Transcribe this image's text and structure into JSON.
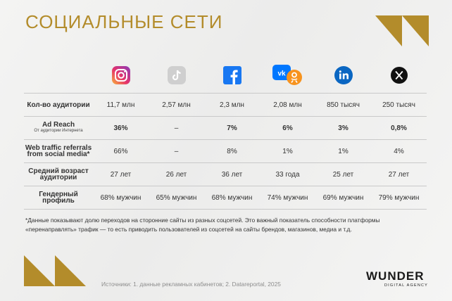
{
  "title": "СОЦИАЛЬНЫЕ СЕТИ",
  "accent": "#b38c2b",
  "platform_icons": [
    "instagram-icon",
    "tiktok-icon",
    "facebook-icon",
    "vk-ok-icon",
    "linkedin-icon",
    "x-icon"
  ],
  "rows": [
    {
      "label": "Кол-во аудитории",
      "sub": "",
      "values": [
        "11,7 млн",
        "2,57 млн",
        "2,3 млн",
        "2,08 млн",
        "850 тысяч",
        "250 тысяч"
      ]
    },
    {
      "label": "Ad Reach",
      "sub": "От аудитории Интернета",
      "values": [
        "36%",
        "–",
        "7%",
        "6%",
        "3%",
        "0,8%"
      ]
    },
    {
      "label": "Web traffic referrals from social media*",
      "sub": "",
      "values": [
        "66%",
        "–",
        "8%",
        "1%",
        "1%",
        "4%"
      ]
    },
    {
      "label": "Средний возраст аудитории",
      "sub": "",
      "values": [
        "27 лет",
        "26 лет",
        "36 лет",
        "33 года",
        "25 лет",
        "27 лет"
      ]
    },
    {
      "label": "Гендерный профиль",
      "sub": "",
      "values": [
        "68% мужчин",
        "65% мужчин",
        "68% мужчин",
        "74% мужчин",
        "69% мужчин",
        "79% мужчин"
      ]
    }
  ],
  "footnote": "*Данные показывают долю переходов на сторонние сайты из разных соцсетей. Это важный показатель способности платформы «перенаправлять» трафик — то есть приводить пользователей из соцсетей на сайты брендов, магазинов, медиа и т.д.",
  "source": "Источники: 1. данные рекламных кабинетов; 2. Datareportal, 2025",
  "logo": {
    "brand": "WUNDER",
    "tagline": "DIGITAL AGENCY"
  }
}
